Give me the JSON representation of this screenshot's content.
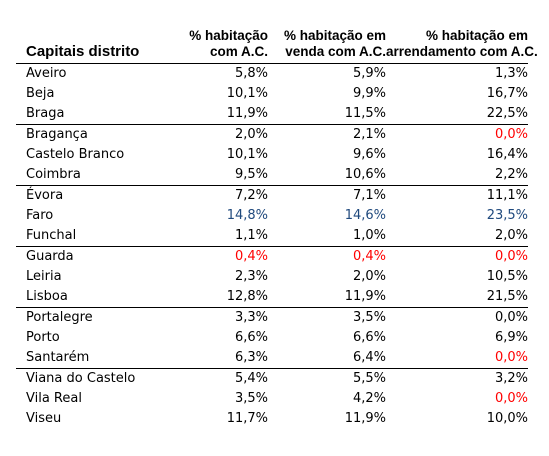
{
  "colors": {
    "red": "#ff0000",
    "blue": "#1f497d"
  },
  "headers": [
    [
      "Capitais distrito"
    ],
    [
      "% habitação",
      "com A.C."
    ],
    [
      "% habitação em",
      "venda com A.C."
    ],
    [
      "% habitação em",
      "arrendamento com A.C."
    ]
  ],
  "rows": [
    {
      "city": "Aveiro",
      "total": "5,8%",
      "sale": "5,9%",
      "rent": "1,3%"
    },
    {
      "city": "Beja",
      "total": "10,1%",
      "sale": "9,9%",
      "rent": "16,7%"
    },
    {
      "city": "Braga",
      "total": "11,9%",
      "sale": "11,5%",
      "rent": "22,5%",
      "group_end": true
    },
    {
      "city": "Bragança",
      "total": "2,0%",
      "sale": "2,1%",
      "rent": "0,0%",
      "rent_color": "red"
    },
    {
      "city": "Castelo Branco",
      "total": "10,1%",
      "sale": "9,6%",
      "rent": "16,4%"
    },
    {
      "city": "Coimbra",
      "total": "9,5%",
      "sale": "10,6%",
      "rent": "2,2%",
      "group_end": true
    },
    {
      "city": "Évora",
      "total": "7,2%",
      "sale": "7,1%",
      "rent": "11,1%"
    },
    {
      "city": "Faro",
      "total": "14,8%",
      "sale": "14,6%",
      "rent": "23,5%",
      "total_color": "blue",
      "sale_color": "blue",
      "rent_color": "blue"
    },
    {
      "city": "Funchal",
      "total": "1,1%",
      "sale": "1,0%",
      "rent": "2,0%",
      "group_end": true
    },
    {
      "city": "Guarda",
      "total": "0,4%",
      "sale": "0,4%",
      "rent": "0,0%",
      "total_color": "red",
      "sale_color": "red",
      "rent_color": "red"
    },
    {
      "city": "Leiria",
      "total": "2,3%",
      "sale": "2,0%",
      "rent": "10,5%"
    },
    {
      "city": "Lisboa",
      "total": "12,8%",
      "sale": "11,9%",
      "rent": "21,5%",
      "group_end": true
    },
    {
      "city": "Portalegre",
      "total": "3,3%",
      "sale": "3,5%",
      "rent": "0,0%"
    },
    {
      "city": "Porto",
      "total": "6,6%",
      "sale": "6,6%",
      "rent": "6,9%"
    },
    {
      "city": "Santarém",
      "total": "6,3%",
      "sale": "6,4%",
      "rent": "0,0%",
      "rent_color": "red",
      "group_end": true
    },
    {
      "city": "Viana do Castelo",
      "total": "5,4%",
      "sale": "5,5%",
      "rent": "3,2%"
    },
    {
      "city": "Vila Real",
      "total": "3,5%",
      "sale": "4,2%",
      "rent": "0,0%",
      "rent_color": "red"
    },
    {
      "city": "Viseu",
      "total": "11,7%",
      "sale": "11,9%",
      "rent": "10,0%"
    }
  ]
}
